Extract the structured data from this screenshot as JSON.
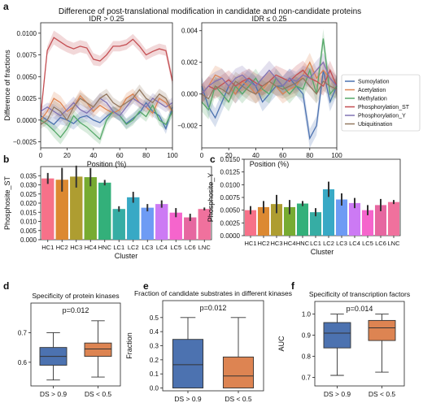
{
  "figure_title": "Difference of post-translational modification in candidate and non-candidate proteins",
  "chart_data": [
    {
      "id": "a-left",
      "panel_letter": "a",
      "type": "line",
      "title": "IDR > 0.25",
      "xlabel": "Position (%)",
      "ylabel": "Difference of fractions",
      "xlim": [
        0,
        100
      ],
      "ylim": [
        -0.0032,
        0.0112
      ],
      "xticks": [
        0,
        20,
        40,
        60,
        80,
        100
      ],
      "xtick_labels": [
        "0",
        "20",
        "40",
        "60",
        "80",
        "100"
      ],
      "yticks": [
        -0.0025,
        0.0,
        0.0025,
        0.005,
        0.0075,
        0.01
      ],
      "ytick_labels": [
        "−0.0025",
        "0.0000",
        "0.0025",
        "0.0050",
        "0.0075",
        "0.0100"
      ],
      "x": [
        0,
        5,
        10,
        15,
        20,
        25,
        30,
        35,
        40,
        45,
        50,
        55,
        60,
        65,
        70,
        75,
        80,
        85,
        90,
        95,
        100
      ],
      "band_half_width": [
        0.0005,
        0.0005,
        0.0008,
        0.0008,
        0.0007,
        0.0007,
        0.0007,
        0.0007,
        0.0007,
        0.0006,
        0.0006,
        0.0006,
        0.0006,
        0.0006,
        0.0006,
        0.0006,
        0.0006,
        0.0006,
        0.0006,
        0.0006,
        0.0006
      ],
      "series": [
        {
          "name": "Sumoylation",
          "color": "#4c72b0",
          "values": [
            0.0005,
            0.0,
            -0.0005,
            0.0003,
            0.0,
            -0.0004,
            0.0003,
            0.0005,
            0.0,
            -0.0003,
            0.0004,
            0.001,
            0.0005,
            -0.0004,
            0.0002,
            0.0008,
            0.002,
            0.001,
            0.0005,
            -0.001,
            0.0015
          ]
        },
        {
          "name": "Acetylation",
          "color": "#dd8452",
          "values": [
            0.0,
            0.001,
            0.0025,
            0.002,
            0.001,
            0.0015,
            0.0028,
            0.002,
            0.001,
            0.0017,
            0.0012,
            0.0008,
            0.0012,
            0.0025,
            0.003,
            0.002,
            0.0015,
            0.0008,
            0.0025,
            0.002,
            0.001
          ]
        },
        {
          "name": "Methylation",
          "color": "#55a868",
          "values": [
            0.0,
            -0.0005,
            -0.0012,
            -0.002,
            -0.001,
            0.0005,
            -0.0003,
            -0.0008,
            -0.0015,
            -0.0022,
            0.0,
            0.001,
            0.0005,
            -0.0005,
            0.0,
            0.001,
            0.0004,
            0.0017,
            0.0,
            -0.0005,
            0.001
          ]
        },
        {
          "name": "Phosphorylation_ST",
          "color": "#c44e52",
          "values": [
            0.0005,
            0.008,
            0.0095,
            0.009,
            0.0085,
            0.0082,
            0.0085,
            0.0083,
            0.007,
            0.0068,
            0.0075,
            0.0085,
            0.0085,
            0.0087,
            0.0093,
            0.0085,
            0.0075,
            0.0079,
            0.0082,
            0.008,
            0.0045
          ]
        },
        {
          "name": "Phosphorylation_Y",
          "color": "#8172b3",
          "values": [
            0.001,
            0.0015,
            0.001,
            0.0005,
            0.0012,
            0.002,
            0.0012,
            0.0008,
            0.0015,
            0.0025,
            0.002,
            0.001,
            0.0005,
            0.0015,
            0.0025,
            0.002,
            0.0015,
            0.0025,
            0.002,
            0.0015,
            0.002
          ]
        },
        {
          "name": "Ubiquitination",
          "color": "#937860",
          "values": [
            -0.0005,
            0.0,
            0.0015,
            0.001,
            0.0,
            0.0015,
            0.0025,
            0.002,
            0.0015,
            0.0025,
            0.003,
            0.002,
            0.0015,
            0.002,
            0.0025,
            0.0035,
            0.0025,
            0.002,
            0.003,
            0.0025,
            0.001
          ]
        }
      ]
    },
    {
      "id": "a-right",
      "type": "line",
      "title": "IDR ≤ 0.25",
      "xlabel": "Position (%)",
      "ylabel": "",
      "xlim": [
        0,
        100
      ],
      "ylim": [
        -0.0034,
        0.0045
      ],
      "xticks": [
        0,
        20,
        40,
        60,
        80,
        100
      ],
      "xtick_labels": [
        "0",
        "20",
        "40",
        "60",
        "80",
        "100"
      ],
      "yticks": [
        -0.002,
        0.0,
        0.002,
        0.004
      ],
      "ytick_labels": [
        "−0.002",
        "0.000",
        "0.002",
        "0.004"
      ],
      "x": [
        0,
        5,
        10,
        15,
        20,
        25,
        30,
        35,
        40,
        45,
        50,
        55,
        60,
        65,
        70,
        75,
        80,
        85,
        90,
        95,
        100
      ],
      "band_half_width": [
        0.0006,
        0.0006,
        0.0006,
        0.0006,
        0.0006,
        0.0006,
        0.0006,
        0.0006,
        0.0006,
        0.0006,
        0.0006,
        0.0006,
        0.0006,
        0.0006,
        0.0006,
        0.0006,
        0.0006,
        0.0006,
        0.0006,
        0.0006,
        0.0006
      ],
      "legend_position": "right",
      "series": [
        {
          "name": "Sumoylation",
          "color": "#4c72b0",
          "values": [
            0.0005,
            -0.0008,
            -0.0015,
            -0.0005,
            0.0005,
            0.0,
            0.0005,
            0.001,
            0.0005,
            -0.0005,
            0.0,
            0.0005,
            0.0005,
            0.001,
            0.0005,
            0.0,
            -0.0028,
            -0.002,
            0.0015,
            -0.0005,
            0.0005
          ]
        },
        {
          "name": "Acetylation",
          "color": "#dd8452",
          "values": [
            0.0,
            0.0005,
            0.0012,
            0.001,
            0.0005,
            0.0,
            0.0008,
            0.0005,
            0.0,
            0.0003,
            0.0008,
            0.0005,
            0.0,
            0.0003,
            0.0005,
            0.0012,
            0.002,
            0.001,
            0.0015,
            0.001,
            0.0005
          ]
        },
        {
          "name": "Methylation",
          "color": "#55a868",
          "values": [
            -0.0005,
            -0.001,
            0.0005,
            0.0,
            -0.0005,
            0.0005,
            0.0,
            0.0005,
            0.001,
            0.0003,
            0.0,
            0.001,
            0.0005,
            0.0,
            0.0005,
            0.0003,
            0.0015,
            0.0,
            0.0035,
            0.0,
            0.0005
          ]
        },
        {
          "name": "Phosphorylation_ST",
          "color": "#c44e52",
          "values": [
            0.0,
            0.0005,
            0.0003,
            0.0006,
            0.0009,
            0.0005,
            0.0008,
            0.001,
            0.0007,
            0.0005,
            0.0008,
            0.0012,
            0.001,
            0.0008,
            0.0012,
            0.0015,
            0.001,
            0.0008,
            0.0005,
            0.0015,
            0.0005
          ]
        },
        {
          "name": "Phosphorylation_Y",
          "color": "#8172b3",
          "values": [
            0.0,
            0.0005,
            0.0008,
            0.001,
            0.0005,
            0.001,
            0.0012,
            0.0008,
            0.0005,
            0.001,
            0.0015,
            0.001,
            0.0005,
            0.001,
            0.0008,
            0.0012,
            0.001,
            0.0015,
            0.002,
            0.001,
            0.0005
          ]
        },
        {
          "name": "Ubiquitination",
          "color": "#937860",
          "values": [
            0.0,
            -0.0003,
            0.0005,
            0.0003,
            0.0,
            0.0008,
            0.0005,
            0.0002,
            0.0,
            0.0005,
            0.0008,
            0.0005,
            0.0003,
            0.0005,
            0.0007,
            0.001,
            0.0005,
            0.0,
            0.0008,
            0.0005,
            0.0003
          ]
        }
      ]
    },
    {
      "id": "b",
      "panel_letter": "b",
      "type": "bar",
      "title": "",
      "xlabel": "Cluster",
      "ylabel": "Phosphosite_ST",
      "ylim": [
        0,
        0.04
      ],
      "yticks": [
        0,
        0.005,
        0.01,
        0.015,
        0.02,
        0.025,
        0.03,
        0.035
      ],
      "ytick_labels": [
        "0.000",
        "0.005",
        "0.010",
        "0.015",
        "0.020",
        "0.025",
        "0.030",
        "0.035"
      ],
      "categories": [
        "HC1",
        "HC2",
        "HC3",
        "HC4",
        "HNC",
        "LC1",
        "LC2",
        "LC3",
        "LC4",
        "LC5",
        "LC6",
        "LNC"
      ],
      "values": [
        0.0335,
        0.0328,
        0.0345,
        0.0342,
        0.0312,
        0.0168,
        0.0232,
        0.0175,
        0.0195,
        0.0148,
        0.0122,
        0.0168
      ],
      "errors": [
        0.003,
        0.0065,
        0.006,
        0.005,
        0.0015,
        0.0015,
        0.003,
        0.002,
        0.002,
        0.0025,
        0.002,
        0.0008
      ],
      "colors": [
        "#f77189",
        "#dc8932",
        "#ae9d31",
        "#77ab31",
        "#33b07a",
        "#36ada4",
        "#38a9c5",
        "#6e9bf4",
        "#cc7af4",
        "#f565cc",
        "#e667a0",
        "#f0719d"
      ]
    },
    {
      "id": "c",
      "panel_letter": "c",
      "type": "bar",
      "title": "",
      "xlabel": "Cluster",
      "ylabel": "Phosphosite_Y",
      "ylim": [
        0,
        0.015
      ],
      "yticks": [
        0,
        0.0025,
        0.005,
        0.0075,
        0.01,
        0.0125,
        0.015
      ],
      "ytick_labels": [
        "0.0000",
        "0.0025",
        "0.0050",
        "0.0075",
        "0.0100",
        "0.0125",
        "0.0150"
      ],
      "categories": [
        "HC1",
        "HC2",
        "HC3",
        "HC4",
        "HNC",
        "LC1",
        "LC2",
        "LC3",
        "LC4",
        "LC5",
        "LC6",
        "LNC"
      ],
      "values": [
        0.005,
        0.0056,
        0.0062,
        0.0056,
        0.0063,
        0.0046,
        0.0091,
        0.0071,
        0.0064,
        0.005,
        0.006,
        0.0066
      ],
      "errors": [
        0.0008,
        0.0012,
        0.0018,
        0.0014,
        0.0005,
        0.0008,
        0.0015,
        0.0012,
        0.001,
        0.001,
        0.0012,
        0.0004
      ],
      "colors": [
        "#f77189",
        "#dc8932",
        "#ae9d31",
        "#77ab31",
        "#33b07a",
        "#36ada4",
        "#38a9c5",
        "#6e9bf4",
        "#cc7af4",
        "#f565cc",
        "#e667a0",
        "#f0719d"
      ]
    },
    {
      "id": "d",
      "panel_letter": "d",
      "type": "box",
      "title": "Specificity of protein kinases",
      "annotation": "p=0.012",
      "xlabel": "",
      "ylabel": "AUC",
      "ylim": [
        0.52,
        0.8
      ],
      "yticks": [
        0.6,
        0.7
      ],
      "ytick_labels": [
        "0.6",
        "0.7"
      ],
      "categories": [
        "DS > 0.9",
        "DS < 0.5"
      ],
      "boxes": [
        {
          "min": 0.54,
          "q1": 0.59,
          "median": 0.62,
          "q3": 0.65,
          "max": 0.7,
          "color": "#4c72b0"
        },
        {
          "min": 0.55,
          "q1": 0.62,
          "median": 0.645,
          "q3": 0.665,
          "max": 0.74,
          "color": "#dd8452"
        }
      ]
    },
    {
      "id": "e",
      "panel_letter": "e",
      "type": "box",
      "title": "Fraction of candidate substrates in different kinases",
      "annotation": "p=0.012",
      "xlabel": "",
      "ylabel": "Fraction",
      "ylim": [
        -0.02,
        0.62
      ],
      "yticks": [
        0,
        0.1,
        0.2,
        0.3,
        0.4,
        0.5
      ],
      "ytick_labels": [
        "0.0",
        "0.1",
        "0.2",
        "0.3",
        "0.4",
        "0.5"
      ],
      "categories": [
        "DS > 0.9",
        "DS < 0.5"
      ],
      "boxes": [
        {
          "min": 0.0,
          "q1": 0.0,
          "median": 0.165,
          "q3": 0.345,
          "max": 0.5,
          "color": "#4c72b0"
        },
        {
          "min": 0.0,
          "q1": 0.0,
          "median": 0.085,
          "q3": 0.22,
          "max": 0.5,
          "color": "#dd8452"
        }
      ]
    },
    {
      "id": "f",
      "panel_letter": "f",
      "type": "box",
      "title": "Specificity of transcription factors",
      "annotation": "p=0.014",
      "xlabel": "",
      "ylabel": "AUC",
      "ylim": [
        0.66,
        1.06
      ],
      "yticks": [
        0.7,
        0.8,
        0.9,
        1.0
      ],
      "ytick_labels": [
        "0.7",
        "0.8",
        "0.9",
        "1.0"
      ],
      "categories": [
        "DS > 0.9",
        "DS < 0.5"
      ],
      "boxes": [
        {
          "min": 0.71,
          "q1": 0.84,
          "median": 0.91,
          "q3": 0.96,
          "max": 1.0,
          "color": "#4c72b0"
        },
        {
          "min": 0.725,
          "q1": 0.875,
          "median": 0.935,
          "q3": 0.97,
          "max": 1.0,
          "color": "#dd8452"
        }
      ]
    }
  ]
}
